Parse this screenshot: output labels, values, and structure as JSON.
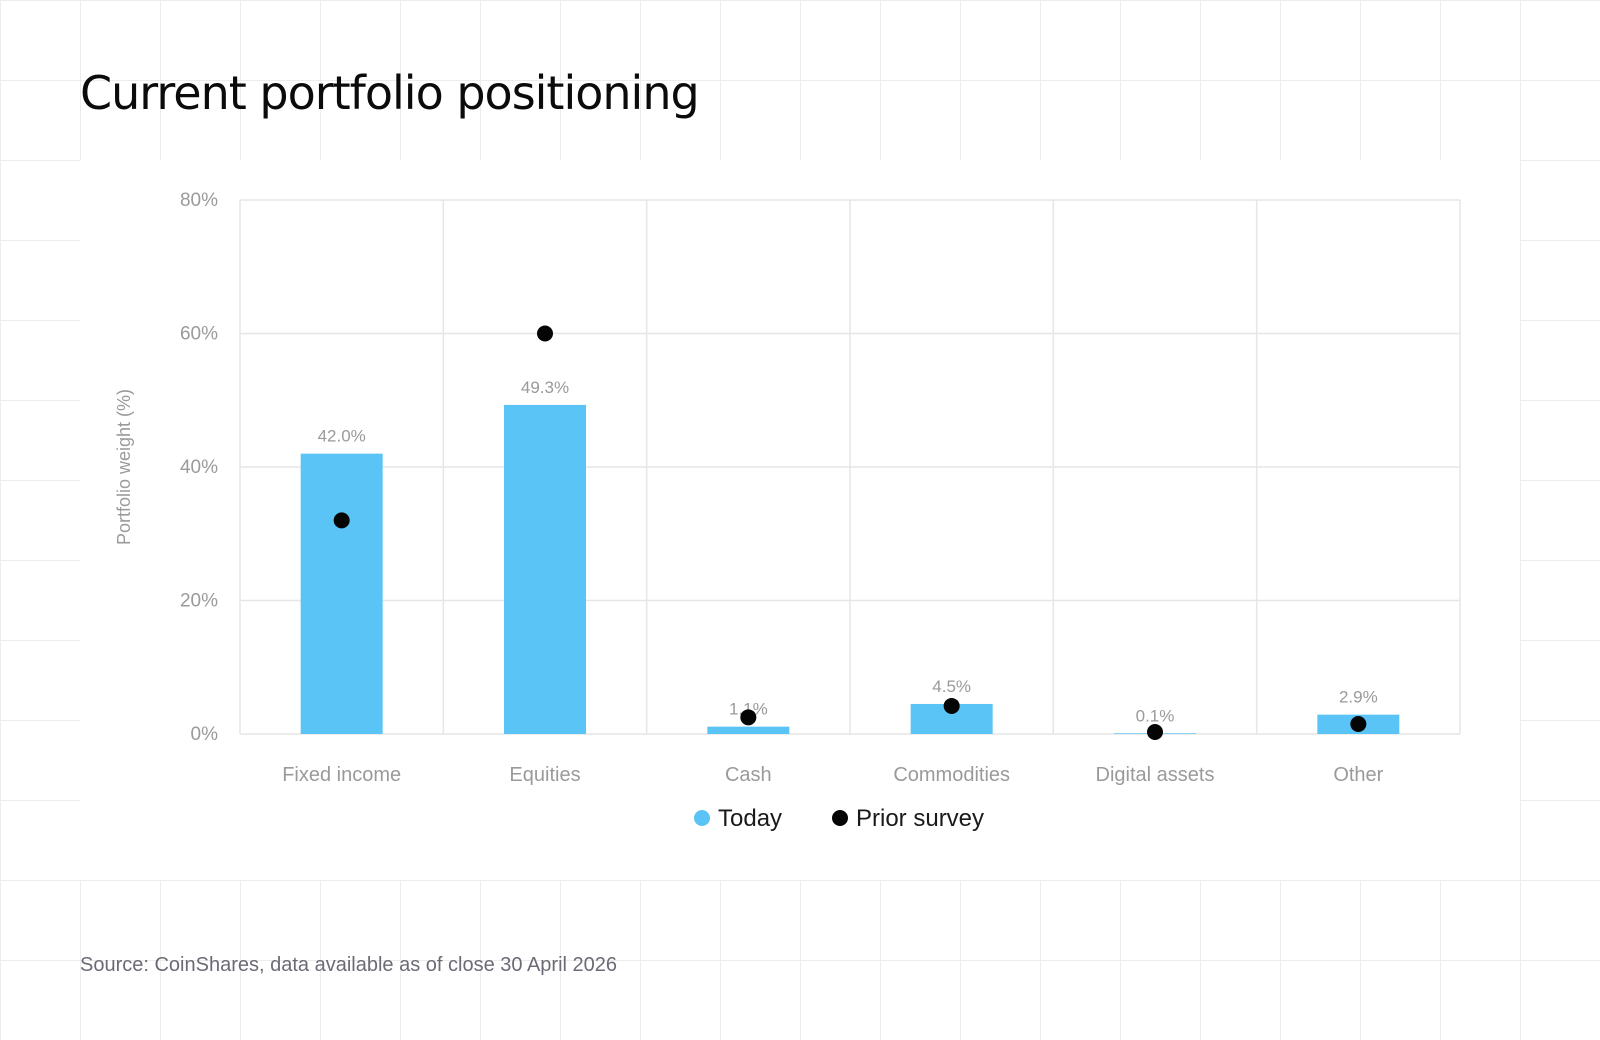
{
  "title": "Current portfolio positioning",
  "source": "Source: CoinShares, data available as of close 30 April 2026",
  "colors": {
    "today": "#5bc4f7",
    "prior": "#050505",
    "axis_text": "#9a9a9a",
    "grid": "#e6e6e6"
  },
  "chart_data": {
    "type": "bar",
    "title": "",
    "xlabel": "",
    "ylabel": "Portfolio weight (%)",
    "ylim": [
      0,
      80
    ],
    "yticks": [
      0,
      20,
      40,
      60,
      80
    ],
    "ytick_labels": [
      "0%",
      "20%",
      "40%",
      "60%",
      "80%"
    ],
    "categories": [
      "Fixed income",
      "Equities",
      "Cash",
      "Commodities",
      "Digital assets",
      "Other"
    ],
    "series": [
      {
        "name": "Today",
        "kind": "bar",
        "values": [
          42.0,
          49.3,
          1.1,
          4.5,
          0.1,
          2.9
        ],
        "labels": [
          "42.0%",
          "49.3%",
          "1.1%",
          "4.5%",
          "0.1%",
          "2.9%"
        ]
      },
      {
        "name": "Prior survey",
        "kind": "dot",
        "values": [
          32.0,
          60.0,
          2.5,
          4.2,
          0.3,
          1.5
        ]
      }
    ],
    "grid": true,
    "legend": "bottom-center"
  }
}
